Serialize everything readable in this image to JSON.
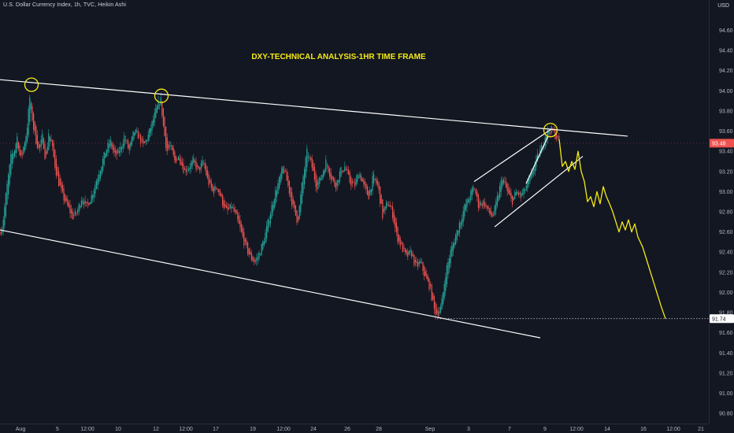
{
  "header": {
    "legend": "U.S. Dollar Currency Index, 1h, TVC, Heikin Ashi",
    "currency": "USD"
  },
  "colors": {
    "background": "#131722",
    "up_candle": "#26a69a",
    "down_candle": "#ef5350",
    "trendline": "#ffffff",
    "projection": "#f5ea14",
    "marker_ring": "#f5ea14",
    "last_price_badge": "#ef5350",
    "level_badge": "#ffffff"
  },
  "chart_data": {
    "type": "candlestick",
    "title": "DXY-TECHNICAL ANALYSIS-1HR TIME FRAME",
    "xlabel": "",
    "ylabel": "",
    "ylim": [
      90.7,
      94.9
    ],
    "grid": false,
    "x_ticks": [
      "Aug",
      "5",
      "12:00",
      "10",
      "12",
      "12:00",
      "17",
      "19",
      "12:00",
      "24",
      "26",
      "28",
      "Sep",
      "3",
      "7",
      "9",
      "12:00",
      "14",
      "16",
      "12:00",
      "21"
    ],
    "y_ticks": [
      "94.60",
      "94.40",
      "94.20",
      "94.00",
      "93.80",
      "93.60",
      "93.40",
      "93.20",
      "93.00",
      "92.80",
      "92.60",
      "92.40",
      "92.20",
      "92.00",
      "91.80",
      "91.60",
      "91.40",
      "91.20",
      "91.00",
      "90.80"
    ],
    "last_price": {
      "label": "93.48",
      "value": 93.48
    },
    "level": {
      "label": "91.74",
      "value": 91.74
    },
    "price_path": [
      [
        0,
        92.6
      ],
      [
        3,
        92.65
      ],
      [
        8,
        93.0
      ],
      [
        14,
        93.35
      ],
      [
        18,
        93.4
      ],
      [
        22,
        93.55
      ],
      [
        26,
        93.3
      ],
      [
        30,
        93.45
      ],
      [
        34,
        93.6
      ],
      [
        38,
        93.95
      ],
      [
        42,
        93.65
      ],
      [
        46,
        93.5
      ],
      [
        50,
        93.4
      ],
      [
        54,
        93.55
      ],
      [
        58,
        93.3
      ],
      [
        62,
        93.6
      ],
      [
        66,
        93.45
      ],
      [
        70,
        93.25
      ],
      [
        74,
        93.1
      ],
      [
        80,
        92.95
      ],
      [
        86,
        92.85
      ],
      [
        92,
        92.75
      ],
      [
        98,
        92.8
      ],
      [
        104,
        92.95
      ],
      [
        110,
        92.85
      ],
      [
        116,
        92.95
      ],
      [
        122,
        93.1
      ],
      [
        128,
        93.25
      ],
      [
        134,
        93.4
      ],
      [
        140,
        93.5
      ],
      [
        146,
        93.35
      ],
      [
        152,
        93.4
      ],
      [
        158,
        93.55
      ],
      [
        164,
        93.4
      ],
      [
        170,
        93.6
      ],
      [
        176,
        93.55
      ],
      [
        182,
        93.45
      ],
      [
        188,
        93.55
      ],
      [
        194,
        93.7
      ],
      [
        200,
        93.85
      ],
      [
        204,
        93.92
      ],
      [
        208,
        93.6
      ],
      [
        212,
        93.4
      ],
      [
        216,
        93.45
      ],
      [
        222,
        93.3
      ],
      [
        228,
        93.35
      ],
      [
        234,
        93.2
      ],
      [
        240,
        93.25
      ],
      [
        246,
        93.3
      ],
      [
        252,
        93.2
      ],
      [
        258,
        93.3
      ],
      [
        264,
        93.1
      ],
      [
        270,
        93.0
      ],
      [
        276,
        93.05
      ],
      [
        282,
        92.9
      ],
      [
        288,
        92.8
      ],
      [
        294,
        92.85
      ],
      [
        300,
        92.75
      ],
      [
        306,
        92.6
      ],
      [
        312,
        92.45
      ],
      [
        318,
        92.35
      ],
      [
        324,
        92.3
      ],
      [
        330,
        92.4
      ],
      [
        336,
        92.55
      ],
      [
        342,
        92.75
      ],
      [
        348,
        92.95
      ],
      [
        354,
        93.1
      ],
      [
        360,
        93.25
      ],
      [
        366,
        93.05
      ],
      [
        372,
        92.85
      ],
      [
        378,
        92.7
      ],
      [
        384,
        93.1
      ],
      [
        390,
        93.4
      ],
      [
        396,
        93.25
      ],
      [
        402,
        93.05
      ],
      [
        408,
        93.15
      ],
      [
        414,
        93.3
      ],
      [
        420,
        93.15
      ],
      [
        426,
        93.05
      ],
      [
        432,
        93.2
      ],
      [
        438,
        93.25
      ],
      [
        444,
        93.1
      ],
      [
        450,
        93.05
      ],
      [
        456,
        93.2
      ],
      [
        462,
        93.05
      ],
      [
        468,
        92.95
      ],
      [
        474,
        93.15
      ],
      [
        480,
        93.05
      ],
      [
        486,
        92.75
      ],
      [
        492,
        92.9
      ],
      [
        498,
        92.8
      ],
      [
        504,
        92.55
      ],
      [
        510,
        92.45
      ],
      [
        516,
        92.35
      ],
      [
        522,
        92.4
      ],
      [
        528,
        92.25
      ],
      [
        534,
        92.3
      ],
      [
        540,
        92.15
      ],
      [
        546,
        92.05
      ],
      [
        552,
        91.8
      ],
      [
        556,
        91.8
      ],
      [
        560,
        91.85
      ],
      [
        566,
        92.2
      ],
      [
        572,
        92.4
      ],
      [
        578,
        92.55
      ],
      [
        584,
        92.7
      ],
      [
        590,
        92.85
      ],
      [
        596,
        92.95
      ],
      [
        602,
        93.05
      ],
      [
        608,
        92.85
      ],
      [
        614,
        92.9
      ],
      [
        620,
        92.8
      ],
      [
        626,
        92.75
      ],
      [
        632,
        92.95
      ],
      [
        638,
        93.15
      ],
      [
        644,
        93.0
      ],
      [
        650,
        92.9
      ],
      [
        656,
        93.0
      ],
      [
        662,
        92.95
      ],
      [
        668,
        93.05
      ],
      [
        674,
        93.15
      ],
      [
        680,
        93.3
      ],
      [
        686,
        93.4
      ],
      [
        692,
        93.55
      ],
      [
        698,
        93.62
      ],
      [
        702,
        93.6
      ],
      [
        706,
        93.55
      ],
      [
        710,
        93.5
      ]
    ],
    "projection_path": [
      [
        710,
        93.52
      ],
      [
        714,
        93.25
      ],
      [
        718,
        93.3
      ],
      [
        722,
        93.2
      ],
      [
        726,
        93.3
      ],
      [
        730,
        93.22
      ],
      [
        734,
        93.4
      ],
      [
        738,
        93.2
      ],
      [
        742,
        93.1
      ],
      [
        746,
        92.9
      ],
      [
        750,
        92.95
      ],
      [
        754,
        92.85
      ],
      [
        758,
        93.0
      ],
      [
        762,
        92.88
      ],
      [
        766,
        93.05
      ],
      [
        770,
        92.95
      ],
      [
        774,
        92.88
      ],
      [
        778,
        92.8
      ],
      [
        782,
        92.7
      ],
      [
        786,
        92.6
      ],
      [
        790,
        92.7
      ],
      [
        794,
        92.62
      ],
      [
        798,
        92.72
      ],
      [
        802,
        92.6
      ],
      [
        806,
        92.68
      ],
      [
        810,
        92.55
      ],
      [
        816,
        92.45
      ],
      [
        822,
        92.3
      ],
      [
        828,
        92.15
      ],
      [
        834,
        92.0
      ],
      [
        840,
        91.85
      ],
      [
        845,
        91.74
      ]
    ],
    "trendlines": [
      {
        "name": "upper-resistance",
        "from": [
          0,
          94.11
        ],
        "to": [
          797,
          93.55
        ]
      },
      {
        "name": "lower-support",
        "from": [
          0,
          92.62
        ],
        "to": [
          686,
          91.55
        ]
      },
      {
        "name": "wedge-top",
        "from": [
          602,
          93.1
        ],
        "to": [
          700,
          93.62
        ]
      },
      {
        "name": "wedge-bottom",
        "from": [
          628,
          92.65
        ],
        "to": [
          740,
          93.35
        ]
      },
      {
        "name": "wedge-inner",
        "from": [
          668,
          93.08
        ],
        "to": [
          696,
          93.55
        ]
      }
    ],
    "markers": [
      {
        "x": 40,
        "y": 94.06
      },
      {
        "x": 205,
        "y": 93.95
      },
      {
        "x": 699,
        "y": 93.61
      }
    ]
  }
}
